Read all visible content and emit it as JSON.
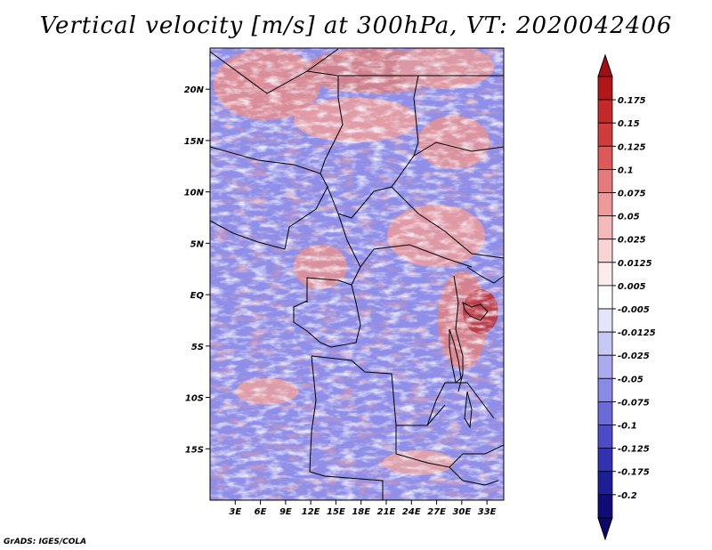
{
  "title": "Vertical velocity [m/s] at 300hPa, VT: 2020042406",
  "credit": "GrADS: IGES/COLA",
  "map": {
    "lat_range": [
      -20,
      24
    ],
    "lon_range": [
      0,
      35
    ],
    "lat_labels": [
      "20N",
      "15N",
      "10N",
      "5N",
      "EQ",
      "5S",
      "10S",
      "15S"
    ],
    "lat_values": [
      20,
      15,
      10,
      5,
      0,
      -5,
      -10,
      -15
    ],
    "lon_labels": [
      "3E",
      "6E",
      "9E",
      "12E",
      "15E",
      "18E",
      "21E",
      "24E",
      "27E",
      "30E",
      "33E"
    ],
    "lon_values": [
      3,
      6,
      9,
      12,
      15,
      18,
      21,
      24,
      27,
      30,
      33
    ]
  },
  "colorbar": {
    "labels": [
      "0.175",
      "0.15",
      "0.125",
      "0.1",
      "0.075",
      "0.05",
      "0.025",
      "0.0125",
      "0.005",
      "-0.005",
      "-0.0125",
      "-0.025",
      "-0.05",
      "-0.075",
      "-0.1",
      "-0.125",
      "-0.175",
      "-0.2"
    ],
    "colors": [
      "#b2181b",
      "#c42a2a",
      "#d23c3c",
      "#de5a5a",
      "#e77a7a",
      "#ee9a9a",
      "#f4baba",
      "#f8d4d4",
      "#fcecec",
      "#ffffff",
      "#e4e4fa",
      "#c8c8f4",
      "#aaaaee",
      "#8a8ae6",
      "#6a6ad8",
      "#4c4cc8",
      "#3232b0",
      "#1e1e96",
      "#100c78"
    ],
    "top_cap_color": "#a00f14",
    "bottom_cap_color": "#0c0868"
  }
}
